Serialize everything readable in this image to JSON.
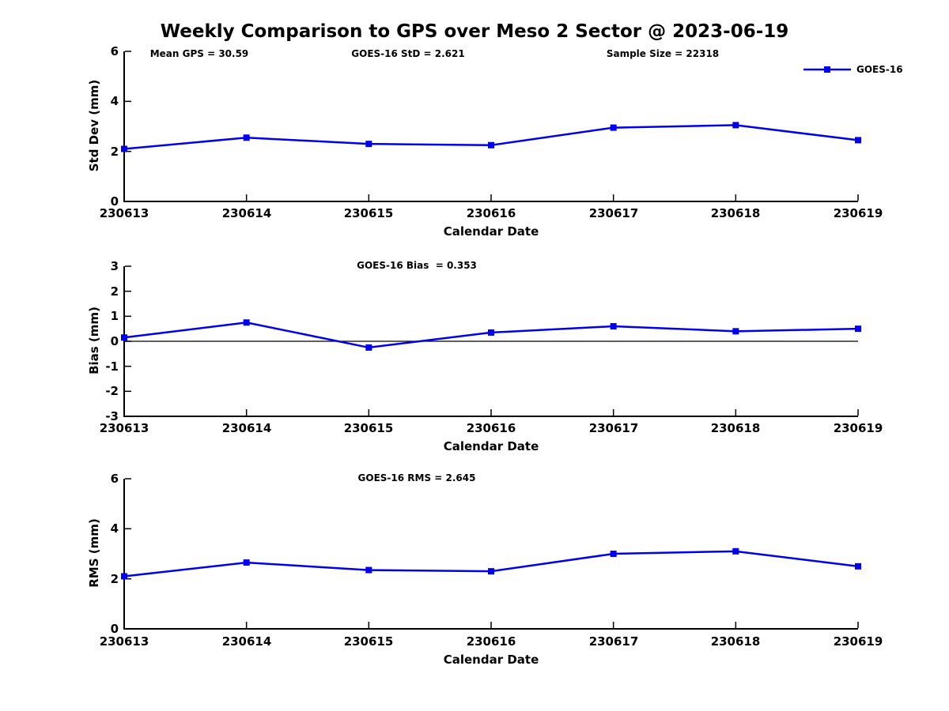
{
  "title": "Weekly Comparison to GPS over Meso 2 Sector @ 2023-06-19",
  "colors": {
    "line": "#0000ee",
    "axis": "#000000",
    "zero_line": "#000000",
    "text": "#000000",
    "background": "#ffffff"
  },
  "legend": {
    "series_label": "GOES-16",
    "position": "top-right"
  },
  "x_axis": {
    "label": "Calendar Date",
    "categories": [
      "230613",
      "230614",
      "230615",
      "230616",
      "230617",
      "230618",
      "230619"
    ]
  },
  "chart_data": [
    {
      "type": "line",
      "name": "std_dev_subplot",
      "ylabel": "Std Dev (mm)",
      "xlabel": "Calendar Date",
      "ylim": [
        0,
        6
      ],
      "yticks": [
        0,
        2,
        4,
        6
      ],
      "grid": false,
      "categories": [
        "230613",
        "230614",
        "230615",
        "230616",
        "230617",
        "230618",
        "230619"
      ],
      "series": [
        {
          "name": "GOES-16",
          "marker": "square",
          "color": "#0000ee",
          "values": [
            2.1,
            2.55,
            2.3,
            2.25,
            2.95,
            3.05,
            2.45
          ]
        }
      ],
      "annotations": [
        {
          "text": "Mean GPS = 30.59"
        },
        {
          "text": "GOES-16 StD = 2.621"
        },
        {
          "text": "Sample Size = 22318"
        }
      ]
    },
    {
      "type": "line",
      "name": "bias_subplot",
      "ylabel": "Bias (mm)",
      "xlabel": "Calendar Date",
      "ylim": [
        -3,
        3
      ],
      "yticks": [
        -3,
        -2,
        -1,
        0,
        1,
        2,
        3
      ],
      "zero_line": true,
      "grid": false,
      "categories": [
        "230613",
        "230614",
        "230615",
        "230616",
        "230617",
        "230618",
        "230619"
      ],
      "series": [
        {
          "name": "GOES-16",
          "marker": "square",
          "color": "#0000ee",
          "values": [
            0.15,
            0.75,
            -0.25,
            0.35,
            0.6,
            0.4,
            0.5
          ]
        }
      ],
      "annotations": [
        {
          "text": "GOES-16 Bias  = 0.353"
        }
      ]
    },
    {
      "type": "line",
      "name": "rms_subplot",
      "ylabel": "RMS (mm)",
      "xlabel": "Calendar Date",
      "ylim": [
        0,
        6
      ],
      "yticks": [
        0,
        2,
        4,
        6
      ],
      "grid": false,
      "categories": [
        "230613",
        "230614",
        "230615",
        "230616",
        "230617",
        "230618",
        "230619"
      ],
      "series": [
        {
          "name": "GOES-16",
          "marker": "square",
          "color": "#0000ee",
          "values": [
            2.1,
            2.65,
            2.35,
            2.3,
            3.0,
            3.1,
            2.5
          ]
        }
      ],
      "annotations": [
        {
          "text": "GOES-16 RMS = 2.645"
        }
      ]
    }
  ]
}
